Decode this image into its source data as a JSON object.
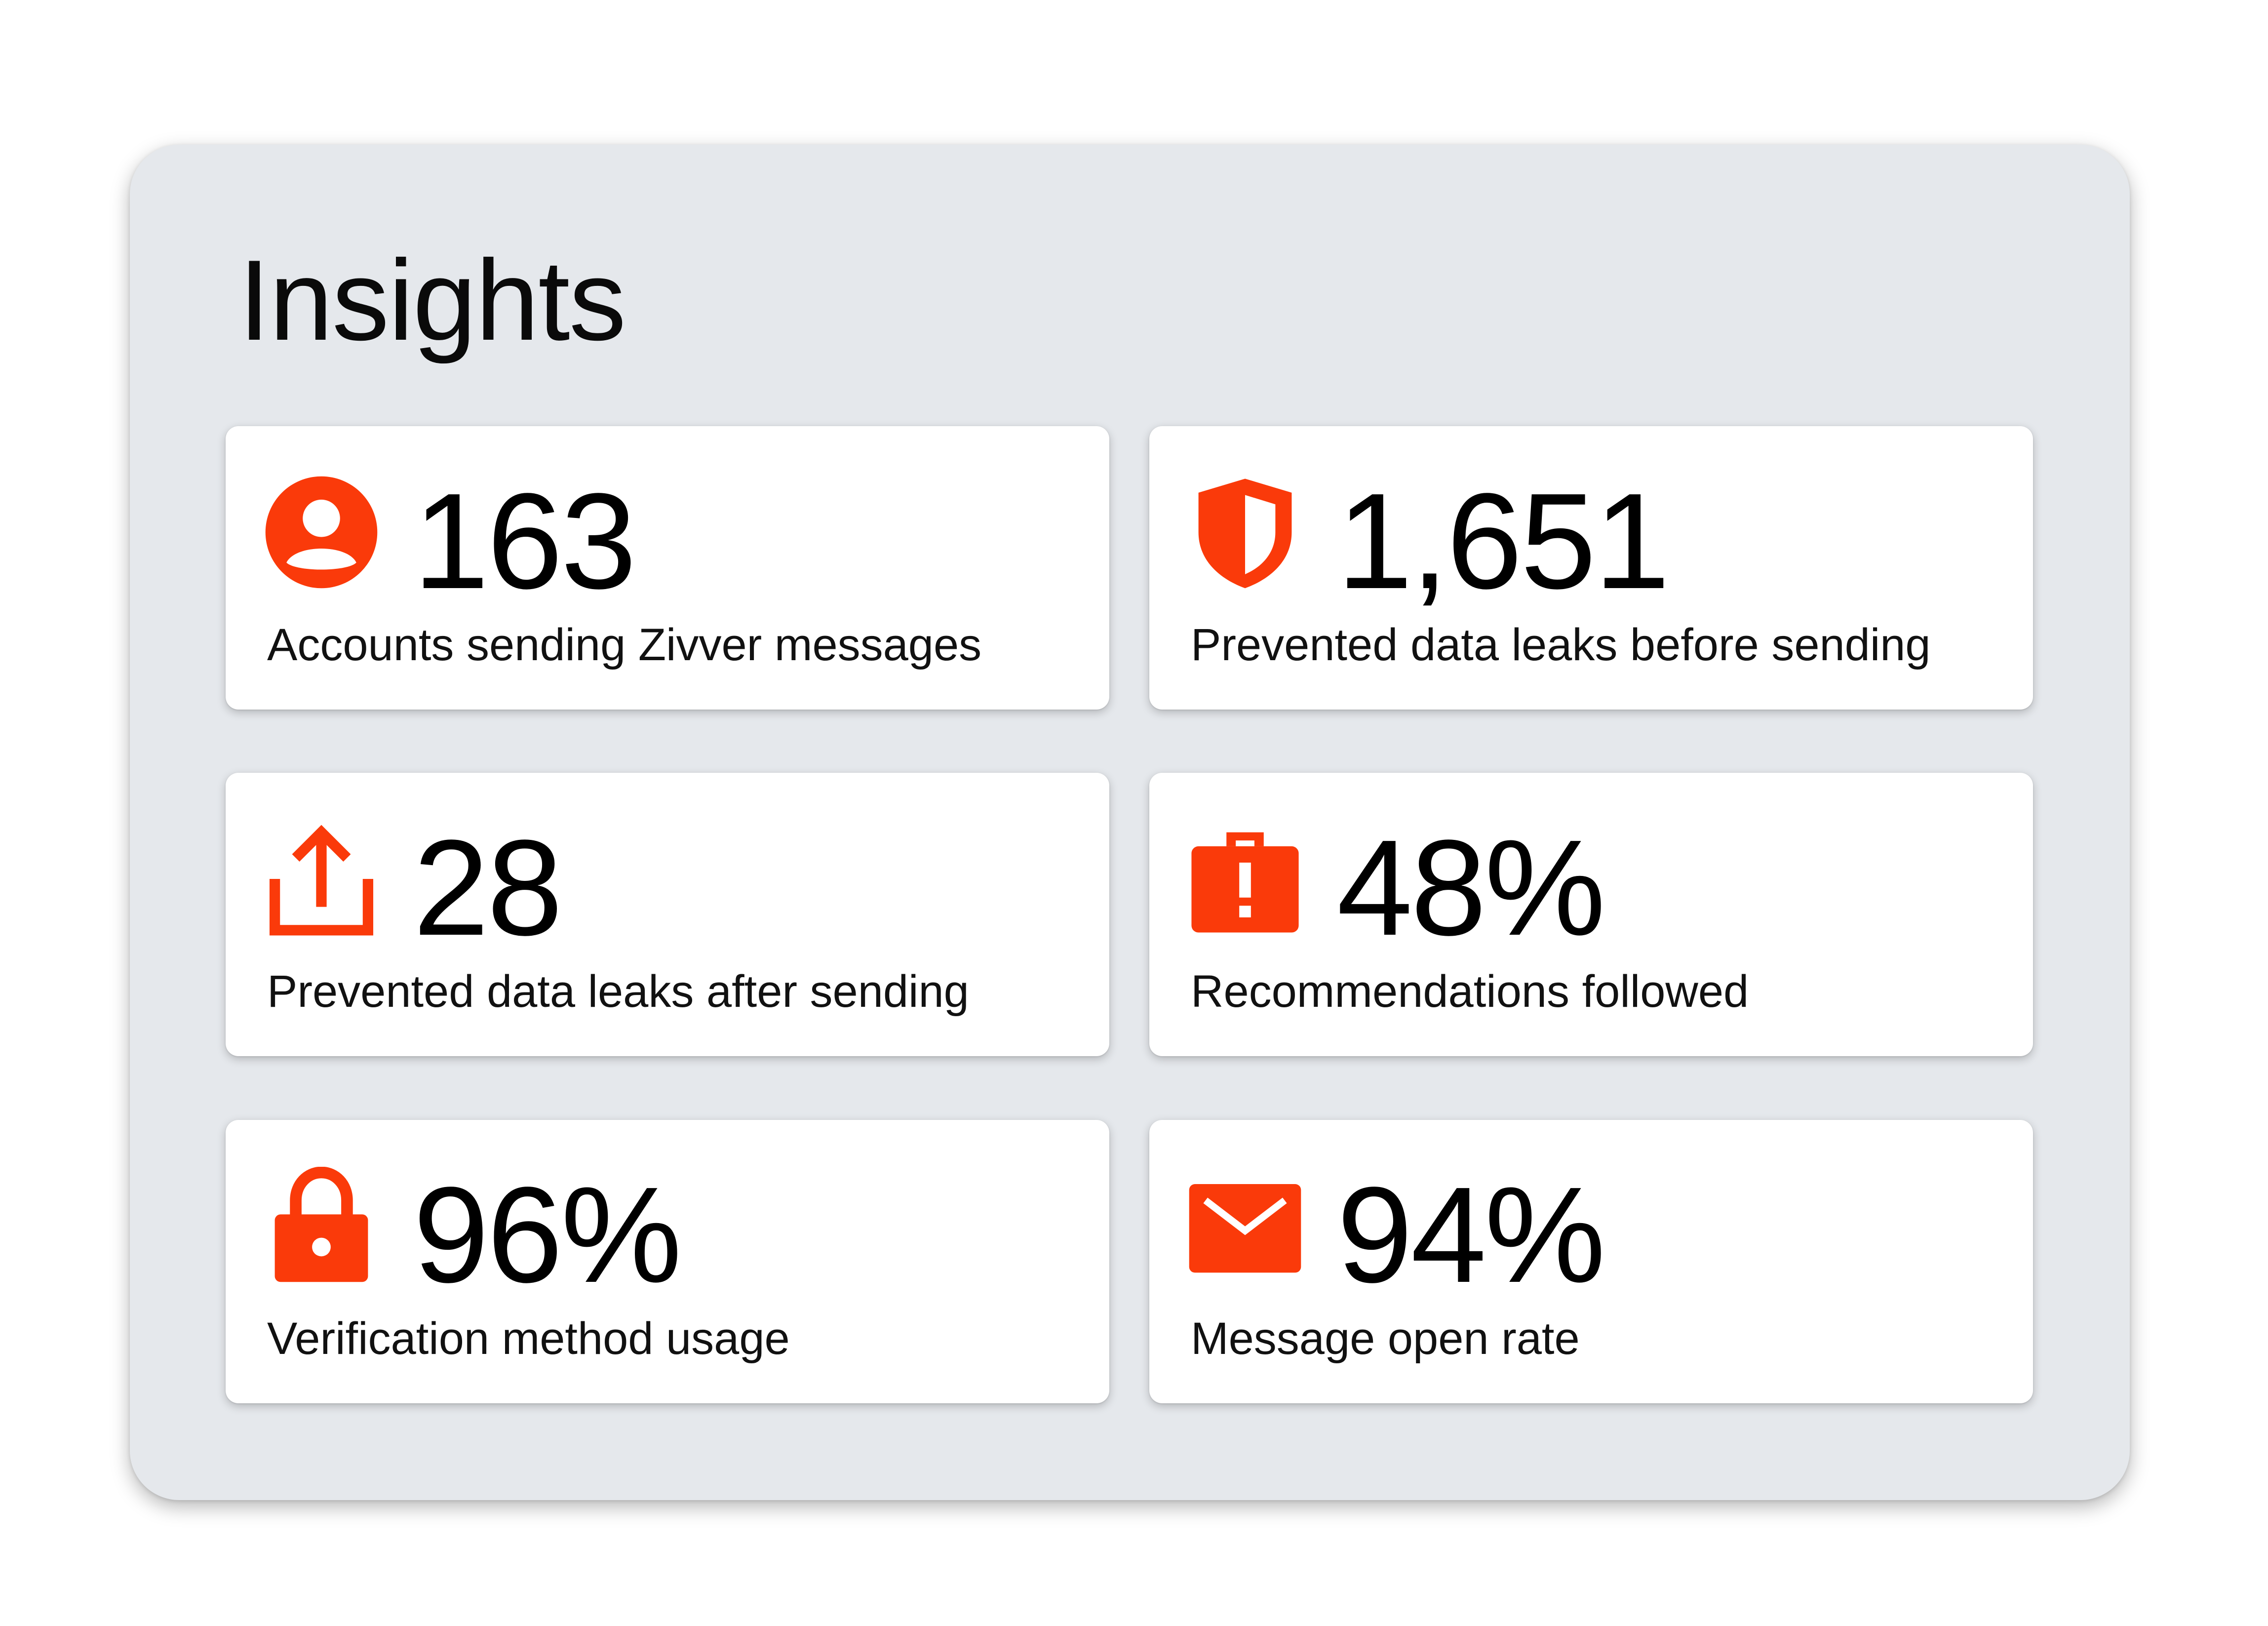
{
  "title": "Insights",
  "accent_color": "#fa3a0a",
  "cards": [
    {
      "icon": "user-circle-icon",
      "value": "163",
      "label": "Accounts sending Zivver messages"
    },
    {
      "icon": "shield-icon",
      "value": "1,651",
      "label": "Prevented data leaks before sending"
    },
    {
      "icon": "upload-icon",
      "value": "28",
      "label": "Prevented data leaks after sending"
    },
    {
      "icon": "briefcase-alert-icon",
      "value": "48%",
      "label": "Recommendations followed"
    },
    {
      "icon": "lock-icon",
      "value": "96%",
      "label": "Verification method usage"
    },
    {
      "icon": "envelope-icon",
      "value": "94%",
      "label": "Message open rate"
    }
  ]
}
